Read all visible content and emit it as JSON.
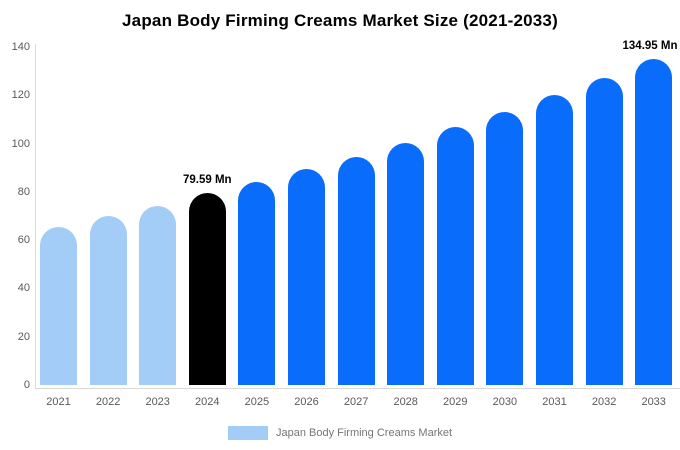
{
  "title": "Japan Body Firming Creams Market Size (2021-2033)",
  "legend": {
    "label": "Japan Body Firming Creams Market",
    "swatch_color": "#a3ccf7"
  },
  "colors": {
    "historical": "#a3ccf7",
    "highlight": "#000000",
    "forecast": "#0a6cfb",
    "axis_text": "#595959",
    "legend_text": "#757575",
    "axis_line": "#d9d9d9",
    "title_text": "#000000"
  },
  "chart_data": {
    "type": "bar",
    "title": "Japan Body Firming Creams Market Size (2021-2033)",
    "xlabel": "",
    "ylabel": "",
    "unit": "Mn",
    "categories": [
      "2021",
      "2022",
      "2023",
      "2024",
      "2025",
      "2026",
      "2027",
      "2028",
      "2029",
      "2030",
      "2031",
      "2032",
      "2033"
    ],
    "values": [
      65.5,
      70.2,
      74.1,
      79.59,
      84.0,
      89.4,
      94.6,
      100.4,
      106.8,
      113.2,
      120.0,
      127.3,
      134.95
    ],
    "bar_color_keys": [
      "historical",
      "historical",
      "historical",
      "highlight",
      "forecast",
      "forecast",
      "forecast",
      "forecast",
      "forecast",
      "forecast",
      "forecast",
      "forecast",
      "forecast"
    ],
    "y_ticks": [
      0,
      20,
      40,
      60,
      80,
      100,
      120,
      140
    ],
    "ylim": [
      0,
      140
    ],
    "grid": false,
    "legend_position": "bottom",
    "annotations": [
      {
        "category": "2024",
        "text": "79.59 Mn"
      },
      {
        "category": "2033",
        "text": "134.95 Mn"
      }
    ]
  }
}
